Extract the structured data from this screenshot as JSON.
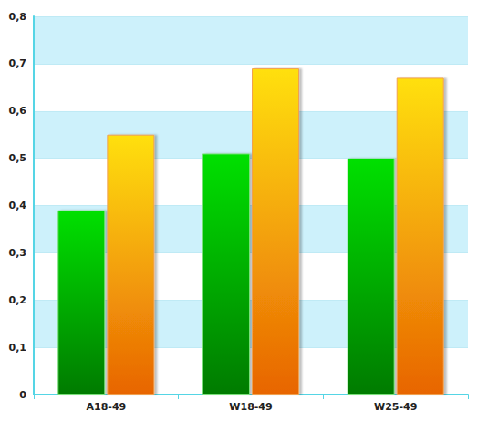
{
  "chart_data": {
    "type": "bar",
    "categories": [
      "A18-49",
      "W18-49",
      "W25-49"
    ],
    "series": [
      {
        "color": "#00e000",
        "values": [
          0.39,
          0.51,
          0.5
        ]
      },
      {
        "color": "#ffe010",
        "values": [
          0.55,
          0.69,
          0.67
        ]
      }
    ],
    "ylim": [
      0,
      0.8
    ],
    "yticks": [
      0,
      {
        "value": 0.1,
        "label": "0,1"
      },
      {
        "value": 0.2,
        "label": "0,2"
      },
      {
        "value": 0.3,
        "label": "0,3"
      },
      {
        "value": 0.4,
        "label": "0,4"
      },
      {
        "value": 0.5,
        "label": "0,5"
      },
      {
        "value": 0.6,
        "label": "0,6"
      },
      {
        "value": 0.7,
        "label": "0,7"
      },
      {
        "value": 0.8,
        "label": "0,8"
      }
    ],
    "grid": true
  }
}
